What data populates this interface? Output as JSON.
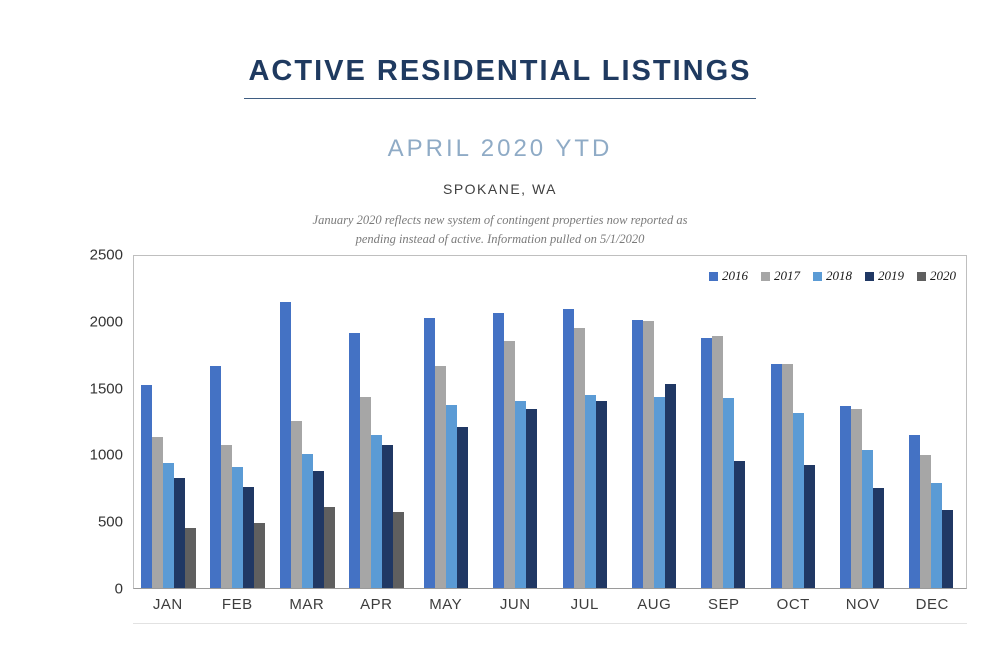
{
  "header": {
    "title": "ACTIVE RESIDENTIAL LISTINGS",
    "subtitle": "APRIL 2020 YTD",
    "location": "SPOKANE, WA",
    "note_line1": "January 2020 reflects new system of contingent properties now reported as",
    "note_line2": "pending instead of active.  Information pulled on 5/1/2020"
  },
  "chart_data": {
    "type": "bar",
    "title": "Active Residential Listings — April 2020 YTD — Spokane, WA",
    "xlabel": "",
    "ylabel": "",
    "ylim": [
      0,
      2500
    ],
    "yticks": [
      0,
      500,
      1000,
      1500,
      2000,
      2500
    ],
    "grid": false,
    "legend_position": "top-right",
    "categories": [
      "JAN",
      "FEB",
      "MAR",
      "APR",
      "MAY",
      "JUN",
      "JUL",
      "AUG",
      "SEP",
      "OCT",
      "NOV",
      "DEC"
    ],
    "series": [
      {
        "name": "2016",
        "color": "#4472c4",
        "values": [
          1530,
          1670,
          2150,
          1920,
          2030,
          2070,
          2100,
          2020,
          1880,
          1690,
          1370,
          1150
        ]
      },
      {
        "name": "2017",
        "color": "#a6a6a6",
        "values": [
          1140,
          1080,
          1260,
          1440,
          1670,
          1860,
          1960,
          2010,
          1900,
          1690,
          1350,
          1000
        ]
      },
      {
        "name": "2018",
        "color": "#5b9bd5",
        "values": [
          940,
          910,
          1010,
          1150,
          1380,
          1410,
          1450,
          1440,
          1430,
          1320,
          1040,
          790
        ]
      },
      {
        "name": "2019",
        "color": "#203864",
        "values": [
          830,
          760,
          880,
          1080,
          1210,
          1350,
          1410,
          1540,
          960,
          930,
          750,
          590
        ]
      },
      {
        "name": "2020",
        "color": "#5f5f5f",
        "values": [
          450,
          490,
          610,
          575,
          null,
          null,
          null,
          null,
          null,
          null,
          null,
          null
        ]
      }
    ]
  }
}
